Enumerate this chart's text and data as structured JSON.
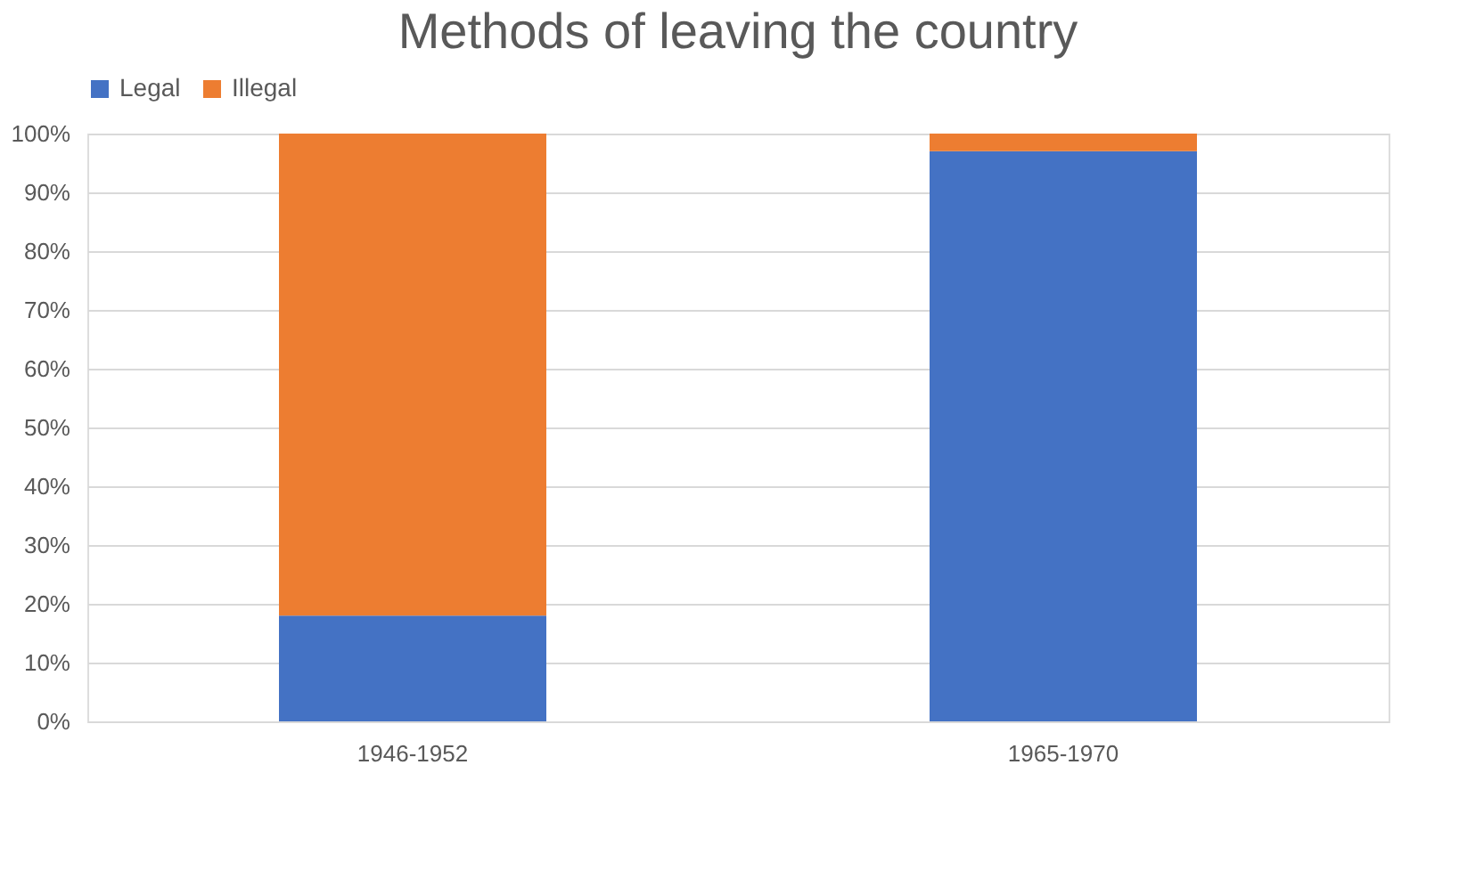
{
  "chart_data": {
    "type": "bar",
    "title": "Methods of leaving the country",
    "stacked": true,
    "categories": [
      "1946-1952",
      "1965-1970"
    ],
    "series": [
      {
        "name": "Legal",
        "color": "#4472c4",
        "values": [
          18,
          97
        ]
      },
      {
        "name": "Illegal",
        "color": "#ed7d31",
        "values": [
          82,
          3
        ]
      }
    ],
    "ylim": [
      0,
      100
    ],
    "yticks": [
      {
        "value": 0,
        "label": "0%"
      },
      {
        "value": 10,
        "label": "10%"
      },
      {
        "value": 20,
        "label": "20%"
      },
      {
        "value": 30,
        "label": "30%"
      },
      {
        "value": 40,
        "label": "40%"
      },
      {
        "value": 50,
        "label": "50%"
      },
      {
        "value": 60,
        "label": "60%"
      },
      {
        "value": 70,
        "label": "70%"
      },
      {
        "value": 80,
        "label": "80%"
      },
      {
        "value": 90,
        "label": "90%"
      },
      {
        "value": 100,
        "label": "100%"
      }
    ],
    "grid": "y",
    "legend": "top"
  }
}
